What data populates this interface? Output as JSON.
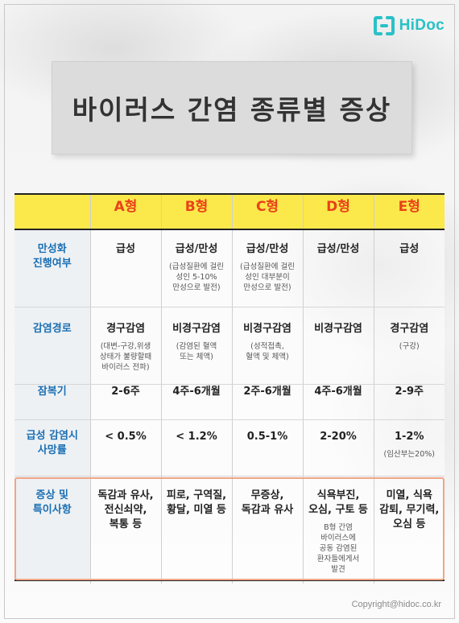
{
  "brand": {
    "name": "HiDoc",
    "color": "#29c1c7"
  },
  "title": "바이러스 간염 종류별 증상",
  "table": {
    "columns": [
      "A형",
      "B형",
      "C형",
      "D형",
      "E형"
    ],
    "rows": [
      {
        "label": "만성화\n진행여부",
        "cells": [
          {
            "main": "급성",
            "sub": ""
          },
          {
            "main": "급성/만성",
            "sub": "(급성질환에 걸린\n성인 5-10%\n만성으로 발전)"
          },
          {
            "main": "급성/만성",
            "sub": "(급성질환에 걸린\n성인 대부분이\n만성으로 발전)"
          },
          {
            "main": "급성/만성",
            "sub": ""
          },
          {
            "main": "급성",
            "sub": ""
          }
        ]
      },
      {
        "label": "감염경로",
        "cells": [
          {
            "main": "경구감염",
            "sub": "(대변-구강,위생\n상태가 불량할때\n바이러스 전파)"
          },
          {
            "main": "비경구감염",
            "sub": "(감염된 혈액\n또는 체액)"
          },
          {
            "main": "비경구감염",
            "sub": "(성적접촉,\n혈액 및 체액)"
          },
          {
            "main": "비경구감염",
            "sub": ""
          },
          {
            "main": "경구감염",
            "sub": "(구강)"
          }
        ]
      },
      {
        "label": "잠복기",
        "cells": [
          {
            "main": "2-6주",
            "sub": ""
          },
          {
            "main": "4주-6개월",
            "sub": ""
          },
          {
            "main": "2주-6개월",
            "sub": ""
          },
          {
            "main": "4주-6개월",
            "sub": ""
          },
          {
            "main": "2-9주",
            "sub": ""
          }
        ]
      },
      {
        "label": "급성 감염시\n사망률",
        "cells": [
          {
            "main": "< 0.5%",
            "sub": ""
          },
          {
            "main": "< 1.2%",
            "sub": ""
          },
          {
            "main": "0.5-1%",
            "sub": ""
          },
          {
            "main": "2-20%",
            "sub": ""
          },
          {
            "main": "1-2%",
            "sub": "(임산부는20%)"
          }
        ]
      },
      {
        "label": "증상 및\n특이사항",
        "cells": [
          {
            "main": "독감과 유사,\n전신쇠약,\n복통 등",
            "sub": ""
          },
          {
            "main": "피로, 구역질,\n황달, 미열 등",
            "sub": ""
          },
          {
            "main": "무증상,\n독감과 유사",
            "sub": ""
          },
          {
            "main": "식욕부진,\n오심, 구토 등",
            "sub": "B형 간염\n바이러스에\n공동 감염된\n환자들에게서\n발견"
          },
          {
            "main": "미열, 식욕\n감퇴, 무기력,\n오심 등",
            "sub": ""
          }
        ]
      }
    ]
  },
  "copyright": "Copyright@hidoc.co.kr"
}
